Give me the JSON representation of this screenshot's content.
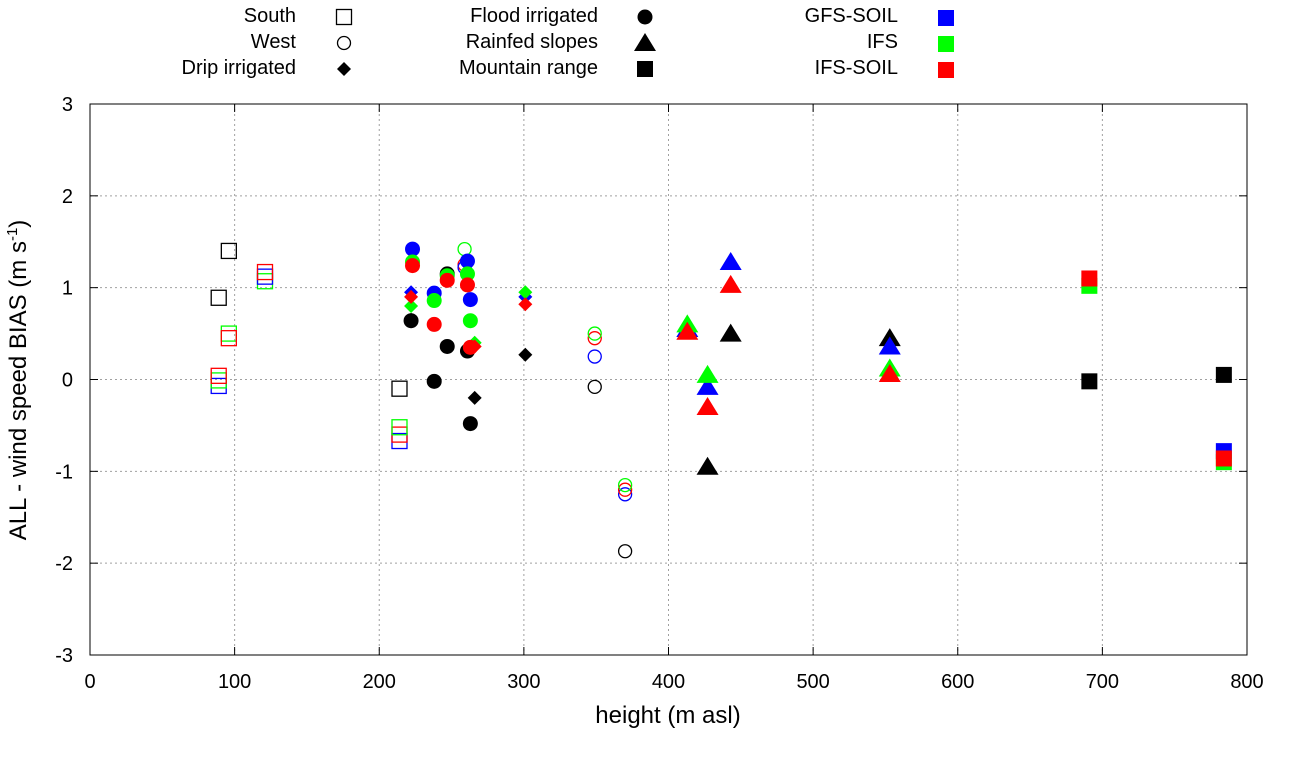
{
  "colors": {
    "black": "#000000",
    "blue": "#0000ff",
    "green": "#00ff00",
    "red": "#ff0000",
    "grid": "#a0a0a0"
  },
  "chart_data": {
    "type": "scatter",
    "xlabel": "height (m asl)",
    "ylabel_main": "ALL - wind speed BIAS (m s",
    "ylabel_sup": "-1",
    "ylabel_end": ")",
    "xlim": [
      0,
      800
    ],
    "ylim": [
      -3,
      3
    ],
    "xticks": [
      0,
      100,
      200,
      300,
      400,
      500,
      600,
      700,
      800
    ],
    "yticks": [
      -3,
      -2,
      -1,
      0,
      1,
      2,
      3
    ],
    "grid": true,
    "legend_placement": "top",
    "legend_shapes": [
      {
        "label": "South",
        "shape": "square-open"
      },
      {
        "label": "West",
        "shape": "circle-open"
      },
      {
        "label": "Drip irrigated",
        "shape": "diamond-filled"
      },
      {
        "label": "Flood irrigated",
        "shape": "circle-filled"
      },
      {
        "label": "Rainfed slopes",
        "shape": "triangle-filled"
      },
      {
        "label": "Mountain range",
        "shape": "square-filled"
      }
    ],
    "legend_models": [
      {
        "label": "GFS-SOIL",
        "color": "blue"
      },
      {
        "label": "IFS",
        "color": "green"
      },
      {
        "label": "IFS-SOIL",
        "color": "red"
      }
    ],
    "series": [
      {
        "name": "South",
        "shape": "square-open",
        "points": [
          {
            "x": 96,
            "y": 1.4,
            "m": "black"
          },
          {
            "x": 89,
            "y": 0.89,
            "m": "black"
          },
          {
            "x": 214,
            "y": -0.1,
            "m": "black"
          },
          {
            "x": 89,
            "y": -0.07,
            "m": "blue"
          },
          {
            "x": 89,
            "y": -0.01,
            "m": "green"
          },
          {
            "x": 89,
            "y": 0.04,
            "m": "red"
          },
          {
            "x": 96,
            "y": 0.5,
            "m": "green"
          },
          {
            "x": 96,
            "y": 0.45,
            "m": "red"
          },
          {
            "x": 121,
            "y": 1.07,
            "m": "green"
          },
          {
            "x": 121,
            "y": 1.12,
            "m": "blue"
          },
          {
            "x": 121,
            "y": 1.17,
            "m": "red"
          },
          {
            "x": 214,
            "y": -0.67,
            "m": "blue"
          },
          {
            "x": 214,
            "y": -0.6,
            "m": "red"
          },
          {
            "x": 214,
            "y": -0.52,
            "m": "green"
          }
        ]
      },
      {
        "name": "West",
        "shape": "circle-open",
        "points": [
          {
            "x": 370,
            "y": -1.87,
            "m": "black"
          },
          {
            "x": 349,
            "y": -0.08,
            "m": "black"
          },
          {
            "x": 349,
            "y": 0.25,
            "m": "blue"
          },
          {
            "x": 349,
            "y": 0.45,
            "m": "red"
          },
          {
            "x": 349,
            "y": 0.5,
            "m": "green"
          },
          {
            "x": 370,
            "y": -1.25,
            "m": "blue"
          },
          {
            "x": 370,
            "y": -1.2,
            "m": "red"
          },
          {
            "x": 370,
            "y": -1.15,
            "m": "green"
          },
          {
            "x": 259,
            "y": 1.42,
            "m": "green"
          },
          {
            "x": 259,
            "y": 1.25,
            "m": "red"
          },
          {
            "x": 259,
            "y": 1.22,
            "m": "blue"
          }
        ]
      },
      {
        "name": "Drip irrigated",
        "shape": "diamond-filled",
        "points": [
          {
            "x": 222,
            "y": 0.65,
            "m": "black"
          },
          {
            "x": 222,
            "y": 0.8,
            "m": "green"
          },
          {
            "x": 222,
            "y": 0.95,
            "m": "blue"
          },
          {
            "x": 222,
            "y": 0.9,
            "m": "red"
          },
          {
            "x": 266,
            "y": -0.2,
            "m": "black"
          },
          {
            "x": 266,
            "y": 0.4,
            "m": "green"
          },
          {
            "x": 266,
            "y": 0.36,
            "m": "red"
          },
          {
            "x": 301,
            "y": 0.27,
            "m": "black"
          },
          {
            "x": 301,
            "y": 0.9,
            "m": "blue"
          },
          {
            "x": 301,
            "y": 0.95,
            "m": "green"
          },
          {
            "x": 301,
            "y": 0.82,
            "m": "red"
          }
        ]
      },
      {
        "name": "Flood irrigated",
        "shape": "circle-filled",
        "points": [
          {
            "x": 222,
            "y": 0.64,
            "m": "black"
          },
          {
            "x": 238,
            "y": -0.02,
            "m": "black"
          },
          {
            "x": 247,
            "y": 0.36,
            "m": "black"
          },
          {
            "x": 261,
            "y": 0.31,
            "m": "black"
          },
          {
            "x": 263,
            "y": -0.48,
            "m": "black"
          },
          {
            "x": 247,
            "y": 1.15,
            "m": "black"
          },
          {
            "x": 223,
            "y": 1.42,
            "m": "blue"
          },
          {
            "x": 223,
            "y": 1.28,
            "m": "green"
          },
          {
            "x": 223,
            "y": 1.24,
            "m": "red"
          },
          {
            "x": 238,
            "y": 0.94,
            "m": "blue"
          },
          {
            "x": 238,
            "y": 0.86,
            "m": "green"
          },
          {
            "x": 238,
            "y": 0.6,
            "m": "red"
          },
          {
            "x": 247,
            "y": 1.13,
            "m": "green"
          },
          {
            "x": 247,
            "y": 1.08,
            "m": "red"
          },
          {
            "x": 261,
            "y": 1.29,
            "m": "blue"
          },
          {
            "x": 261,
            "y": 1.15,
            "m": "green"
          },
          {
            "x": 261,
            "y": 1.03,
            "m": "red"
          },
          {
            "x": 263,
            "y": 0.87,
            "m": "blue"
          },
          {
            "x": 263,
            "y": 0.64,
            "m": "green"
          },
          {
            "x": 263,
            "y": 0.35,
            "m": "red"
          }
        ]
      },
      {
        "name": "Rainfed slopes",
        "shape": "triangle-filled",
        "points": [
          {
            "x": 443,
            "y": 0.5,
            "m": "black"
          },
          {
            "x": 427,
            "y": -0.95,
            "m": "black"
          },
          {
            "x": 553,
            "y": 0.45,
            "m": "black"
          },
          {
            "x": 413,
            "y": 0.55,
            "m": "blue"
          },
          {
            "x": 413,
            "y": 0.6,
            "m": "green"
          },
          {
            "x": 413,
            "y": 0.52,
            "m": "red"
          },
          {
            "x": 427,
            "y": -0.08,
            "m": "blue"
          },
          {
            "x": 427,
            "y": 0.05,
            "m": "green"
          },
          {
            "x": 427,
            "y": -0.3,
            "m": "red"
          },
          {
            "x": 443,
            "y": 1.28,
            "m": "blue"
          },
          {
            "x": 443,
            "y": 1.03,
            "m": "red"
          },
          {
            "x": 553,
            "y": 0.36,
            "m": "blue"
          },
          {
            "x": 553,
            "y": 0.12,
            "m": "green"
          },
          {
            "x": 553,
            "y": 0.06,
            "m": "red"
          }
        ]
      },
      {
        "name": "Mountain range",
        "shape": "square-filled",
        "points": [
          {
            "x": 691,
            "y": -0.02,
            "m": "black"
          },
          {
            "x": 784,
            "y": 0.05,
            "m": "black"
          },
          {
            "x": 691,
            "y": 1.02,
            "m": "green"
          },
          {
            "x": 691,
            "y": 1.1,
            "m": "red"
          },
          {
            "x": 784,
            "y": -0.78,
            "m": "blue"
          },
          {
            "x": 784,
            "y": -0.9,
            "m": "green"
          },
          {
            "x": 784,
            "y": -0.86,
            "m": "red"
          }
        ]
      }
    ]
  }
}
